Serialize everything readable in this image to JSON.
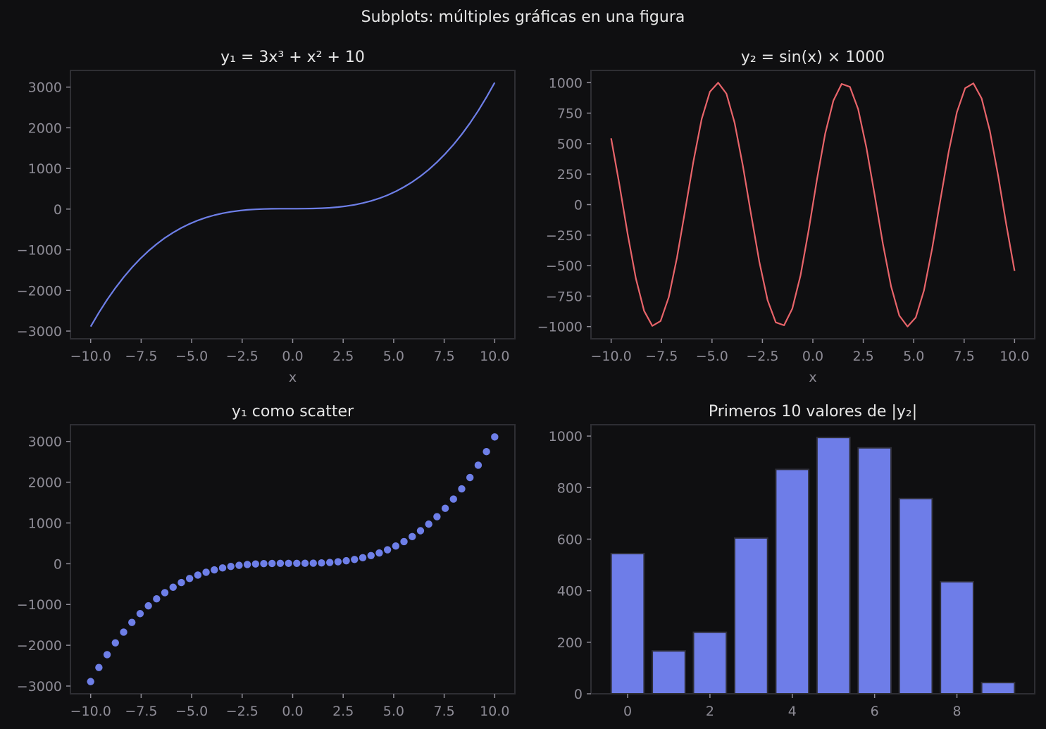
{
  "figure": {
    "suptitle": "Subplots: múltiples gráficas en una figura",
    "background": "#0f0f11",
    "colors": {
      "line1": "#6e7fe8",
      "line2": "#e8646a",
      "bar": "#6e7de8",
      "bar_edge": "#2e2e38",
      "frame": "#2e2e33",
      "tick_text": "#8e8c96",
      "title_text": "#e6e6e6"
    }
  },
  "chart_data": [
    {
      "type": "line",
      "title": "y₁ = 3x³ + x² + 10",
      "xlabel": "x",
      "ylabel": "",
      "xlim": [
        -11.0,
        11.0
      ],
      "ylim": [
        -3190,
        3410
      ],
      "xticks": [
        -10.0,
        -7.5,
        -5.0,
        -2.5,
        0.0,
        2.5,
        5.0,
        7.5,
        10.0
      ],
      "xtick_labels": [
        "−10.0",
        "−7.5",
        "−5.0",
        "−2.5",
        "0.0",
        "2.5",
        "5.0",
        "7.5",
        "10.0"
      ],
      "yticks": [
        -3000,
        -2000,
        -1000,
        0,
        1000,
        2000,
        3000
      ],
      "ytick_labels": [
        "−3000",
        "−2000",
        "−1000",
        "0",
        "1000",
        "2000",
        "3000"
      ],
      "grid": false,
      "series": [
        {
          "name": "y1",
          "color": "#6e7fe8",
          "ref": "y1"
        }
      ]
    },
    {
      "type": "line",
      "title": "y₂ = sin(x) × 1000",
      "xlabel": "x",
      "ylabel": "",
      "xlim": [
        -11.0,
        11.0
      ],
      "ylim": [
        -1100,
        1100
      ],
      "xticks": [
        -10.0,
        -7.5,
        -5.0,
        -2.5,
        0.0,
        2.5,
        5.0,
        7.5,
        10.0
      ],
      "xtick_labels": [
        "−10.0",
        "−7.5",
        "−5.0",
        "−2.5",
        "0.0",
        "2.5",
        "5.0",
        "7.5",
        "10.0"
      ],
      "yticks": [
        -1000,
        -750,
        -500,
        -250,
        0,
        250,
        500,
        750,
        1000
      ],
      "ytick_labels": [
        "−1000",
        "−750",
        "−500",
        "−250",
        "0",
        "250",
        "500",
        "750",
        "1000"
      ],
      "grid": false,
      "series": [
        {
          "name": "y2",
          "color": "#e8646a",
          "ref": "y2"
        }
      ]
    },
    {
      "type": "scatter",
      "title": "y₁ como scatter",
      "xlabel": "",
      "ylabel": "",
      "xlim": [
        -11.0,
        11.0
      ],
      "ylim": [
        -3190,
        3410
      ],
      "xticks": [
        -10.0,
        -7.5,
        -5.0,
        -2.5,
        0.0,
        2.5,
        5.0,
        7.5,
        10.0
      ],
      "xtick_labels": [
        "−10.0",
        "−7.5",
        "−5.0",
        "−2.5",
        "0.0",
        "2.5",
        "5.0",
        "7.5",
        "10.0"
      ],
      "yticks": [
        -3000,
        -2000,
        -1000,
        0,
        1000,
        2000,
        3000
      ],
      "ytick_labels": [
        "−3000",
        "−2000",
        "−1000",
        "0",
        "1000",
        "2000",
        "3000"
      ],
      "grid": false,
      "series": [
        {
          "name": "y1",
          "color": "#6e7fe8",
          "ref": "y1"
        }
      ]
    },
    {
      "type": "bar",
      "title": "Primeros 10 valores de |y₂|",
      "xlabel": "",
      "ylabel": "",
      "categories": [
        0,
        1,
        2,
        3,
        4,
        5,
        6,
        7,
        8,
        9
      ],
      "values": [
        544.0,
        166.3,
        238.7,
        604.5,
        870.7,
        994.4,
        954.3,
        757.5,
        434.8,
        43.4
      ],
      "xlim": [
        -0.89,
        9.89
      ],
      "ylim": [
        0,
        1044
      ],
      "xticks": [
        0,
        2,
        4,
        6,
        8
      ],
      "xtick_labels": [
        "0",
        "2",
        "4",
        "6",
        "8"
      ],
      "yticks": [
        0,
        200,
        400,
        600,
        800,
        1000
      ],
      "ytick_labels": [
        "0",
        "200",
        "400",
        "600",
        "800",
        "1000"
      ],
      "grid": false,
      "series": [
        {
          "name": "|y2|",
          "color": "#6e7de8"
        }
      ]
    }
  ],
  "series_data": {
    "x": [
      -10.0,
      -9.592,
      -9.184,
      -8.776,
      -8.367,
      -7.959,
      -7.551,
      -7.143,
      -6.735,
      -6.327,
      -5.918,
      -5.51,
      -5.102,
      -4.694,
      -4.286,
      -3.878,
      -3.469,
      -3.061,
      -2.653,
      -2.245,
      -1.837,
      -1.429,
      -1.02,
      -0.612,
      -0.204,
      0.204,
      0.612,
      1.02,
      1.429,
      1.837,
      2.245,
      2.653,
      3.061,
      3.469,
      3.878,
      4.286,
      4.694,
      5.102,
      5.51,
      5.918,
      6.327,
      6.735,
      7.143,
      7.551,
      7.959,
      8.367,
      8.776,
      9.184,
      9.592,
      10.0
    ],
    "y1": [
      -2890.0,
      -2545.4,
      -2229.3,
      -1940.4,
      -1677.4,
      -1439.3,
      -1224.6,
      -1032.3,
      -861.0,
      -709.6,
      -576.9,
      -461.5,
      -362.4,
      -278.2,
      -207.8,
      -149.9,
      -103.2,
      -66.7,
      -39.0,
      -18.9,
      -5.2,
      3.3,
      7.9,
      9.7,
      10.0,
      10.1,
      11.1,
      14.2,
      20.8,
      32.0,
      49.0,
      73.1,
      105.4,
      147.3,
      200.0,
      264.5,
      342.3,
      434.5,
      542.3,
      666.9,
      809.7,
      971.7,
      1154.3,
      1358.7,
      1586.0,
      1837.5,
      2114.4,
      2418.0,
      2749.5,
      3110.0
    ],
    "y2": [
      544.0,
      166.3,
      -238.7,
      -604.5,
      -870.7,
      -994.4,
      -954.3,
      -757.5,
      -434.8,
      -43.4,
      356.5,
      702.5,
      925.9,
      999.8,
      909.6,
      671.0,
      316.5,
      -80.3,
      -468.5,
      -783.1,
      -965.4,
      -989.5,
      -853.2,
      -580.8,
      -205.1,
      205.1,
      580.8,
      853.2,
      989.5,
      965.4,
      783.1,
      468.5,
      80.3,
      -316.5,
      -671.0,
      -909.6,
      -999.8,
      -925.9,
      -702.5,
      -356.5,
      43.4,
      434.8,
      757.5,
      954.3,
      994.4,
      870.7,
      604.5,
      238.7,
      -166.3,
      -544.0
    ]
  }
}
